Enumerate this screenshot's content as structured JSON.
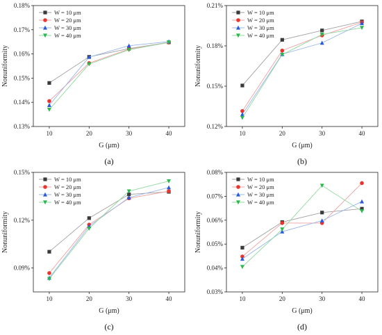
{
  "chart_data": [
    {
      "type": "line",
      "panel_label": "(a)",
      "xlabel": "G (μm)",
      "ylabel": "Nonuniformity",
      "x": [
        10,
        20,
        30,
        40
      ],
      "xlim": [
        6,
        44
      ],
      "ylim": [
        0.13,
        0.18
      ],
      "yticks": [
        0.13,
        0.14,
        0.15,
        0.16,
        0.17,
        0.18
      ],
      "ytick_labels": [
        "0.13%",
        "0.14%",
        "0.15%",
        "0.16%",
        "0.17%",
        "0.18%"
      ],
      "legend_position": "top-left",
      "series": [
        {
          "name": "W = 10 μm",
          "values": [
            0.148,
            0.1588,
            0.1622,
            0.1648
          ]
        },
        {
          "name": "W = 20 μm",
          "values": [
            0.1405,
            0.1562,
            0.162,
            0.1647
          ]
        },
        {
          "name": "W = 30 μm",
          "values": [
            0.1388,
            0.1587,
            0.1634,
            0.1651
          ]
        },
        {
          "name": "W = 40 μm",
          "values": [
            0.137,
            0.1558,
            0.1617,
            0.1648
          ]
        }
      ]
    },
    {
      "type": "line",
      "panel_label": "(b)",
      "xlabel": "G (μm)",
      "ylabel": "Nonuniformity",
      "x": [
        10,
        20,
        30,
        40
      ],
      "xlim": [
        6,
        44
      ],
      "ylim": [
        0.12,
        0.21
      ],
      "yticks": [
        0.12,
        0.15,
        0.18,
        0.21
      ],
      "ytick_labels": [
        "0.12%",
        "0.15%",
        "0.18%",
        "0.21%"
      ],
      "legend_position": "top-left",
      "series": [
        {
          "name": "W = 10 μm",
          "values": [
            0.1505,
            0.1845,
            0.1915,
            0.1982
          ]
        },
        {
          "name": "W = 20 μm",
          "values": [
            0.1315,
            0.1765,
            0.1878,
            0.1975
          ]
        },
        {
          "name": "W = 30 μm",
          "values": [
            0.129,
            0.1738,
            0.1822,
            0.1968
          ]
        },
        {
          "name": "W = 40 μm",
          "values": [
            0.1265,
            0.1735,
            0.1885,
            0.1935
          ]
        }
      ]
    },
    {
      "type": "line",
      "panel_label": "(c)",
      "xlabel": "G (μm)",
      "ylabel": "Nonuniformity",
      "x": [
        10,
        20,
        30,
        40
      ],
      "xlim": [
        6,
        44
      ],
      "ylim": [
        0.075,
        0.15
      ],
      "yticks": [
        0.09,
        0.12,
        0.15
      ],
      "ytick_labels": [
        "0.09%",
        "0.12%",
        "0.15%"
      ],
      "legend_position": "top-left",
      "series": [
        {
          "name": "W = 10 μm",
          "values": [
            0.1002,
            0.1213,
            0.1362,
            0.1378
          ]
        },
        {
          "name": "W = 20 μm",
          "values": [
            0.0868,
            0.1172,
            0.1337,
            0.1382
          ]
        },
        {
          "name": "W = 30 μm",
          "values": [
            0.0838,
            0.1162,
            0.1342,
            0.1405
          ]
        },
        {
          "name": "W = 40 μm",
          "values": [
            0.0832,
            0.1148,
            0.1382,
            0.1445
          ]
        }
      ]
    },
    {
      "type": "line",
      "panel_label": "(d)",
      "xlabel": "G (μm)",
      "ylabel": "Nonuniformity",
      "x": [
        10,
        20,
        30,
        40
      ],
      "xlim": [
        6,
        44
      ],
      "ylim": [
        0.03,
        0.08
      ],
      "yticks": [
        0.03,
        0.04,
        0.05,
        0.06,
        0.07,
        0.08
      ],
      "ytick_labels": [
        "0.03%",
        "0.04%",
        "0.05%",
        "0.06%",
        "0.07%",
        "0.08%"
      ],
      "legend_position": "top-left",
      "series": [
        {
          "name": "W = 10 μm",
          "values": [
            0.0485,
            0.0592,
            0.0632,
            0.0648
          ]
        },
        {
          "name": "W = 20 μm",
          "values": [
            0.0448,
            0.0588,
            0.0588,
            0.0755
          ]
        },
        {
          "name": "W = 30 μm",
          "values": [
            0.0438,
            0.0552,
            0.0598,
            0.0678
          ]
        },
        {
          "name": "W = 40 μm",
          "values": [
            0.0405,
            0.0562,
            0.0745,
            0.0638
          ]
        }
      ]
    }
  ],
  "style": {
    "series_colors": [
      "#3a3a3a",
      "#e8352d",
      "#2a5bd7",
      "#2db84d"
    ],
    "line_colors": [
      "#a0a0a0",
      "#f0a0a0",
      "#9ab4ea",
      "#8ed8a0"
    ],
    "marker_shapes": [
      "square",
      "circle",
      "triangle-up",
      "triangle-down"
    ]
  }
}
